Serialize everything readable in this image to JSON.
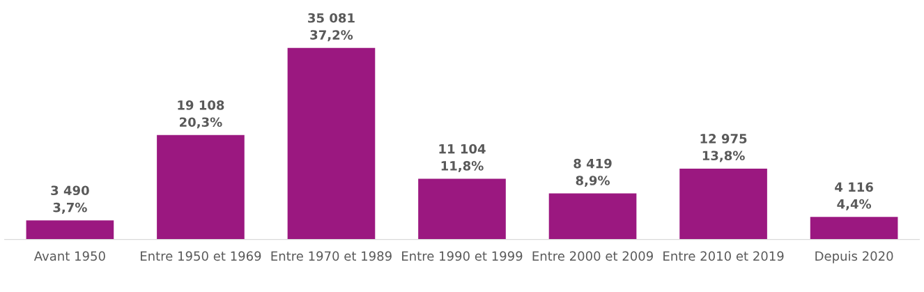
{
  "chart_data": {
    "type": "bar",
    "categories": [
      "Avant 1950",
      "Entre 1950 et 1969",
      "Entre 1970 et 1989",
      "Entre 1990 et 1999",
      "Entre 2000 et 2009",
      "Entre 2010 et 2019",
      "Depuis 2020"
    ],
    "values": [
      3490,
      19108,
      35081,
      11104,
      8419,
      12975,
      4116
    ],
    "value_labels": [
      "3 490\n3,7%",
      "19 108\n20,3%",
      "35 081\n37,2%",
      "11 104\n11,8%",
      "8 419\n8,9%",
      "12 975\n13,8%",
      "4 116\n4,4%"
    ],
    "color": "#9b1880",
    "grid": false,
    "legend": false
  }
}
